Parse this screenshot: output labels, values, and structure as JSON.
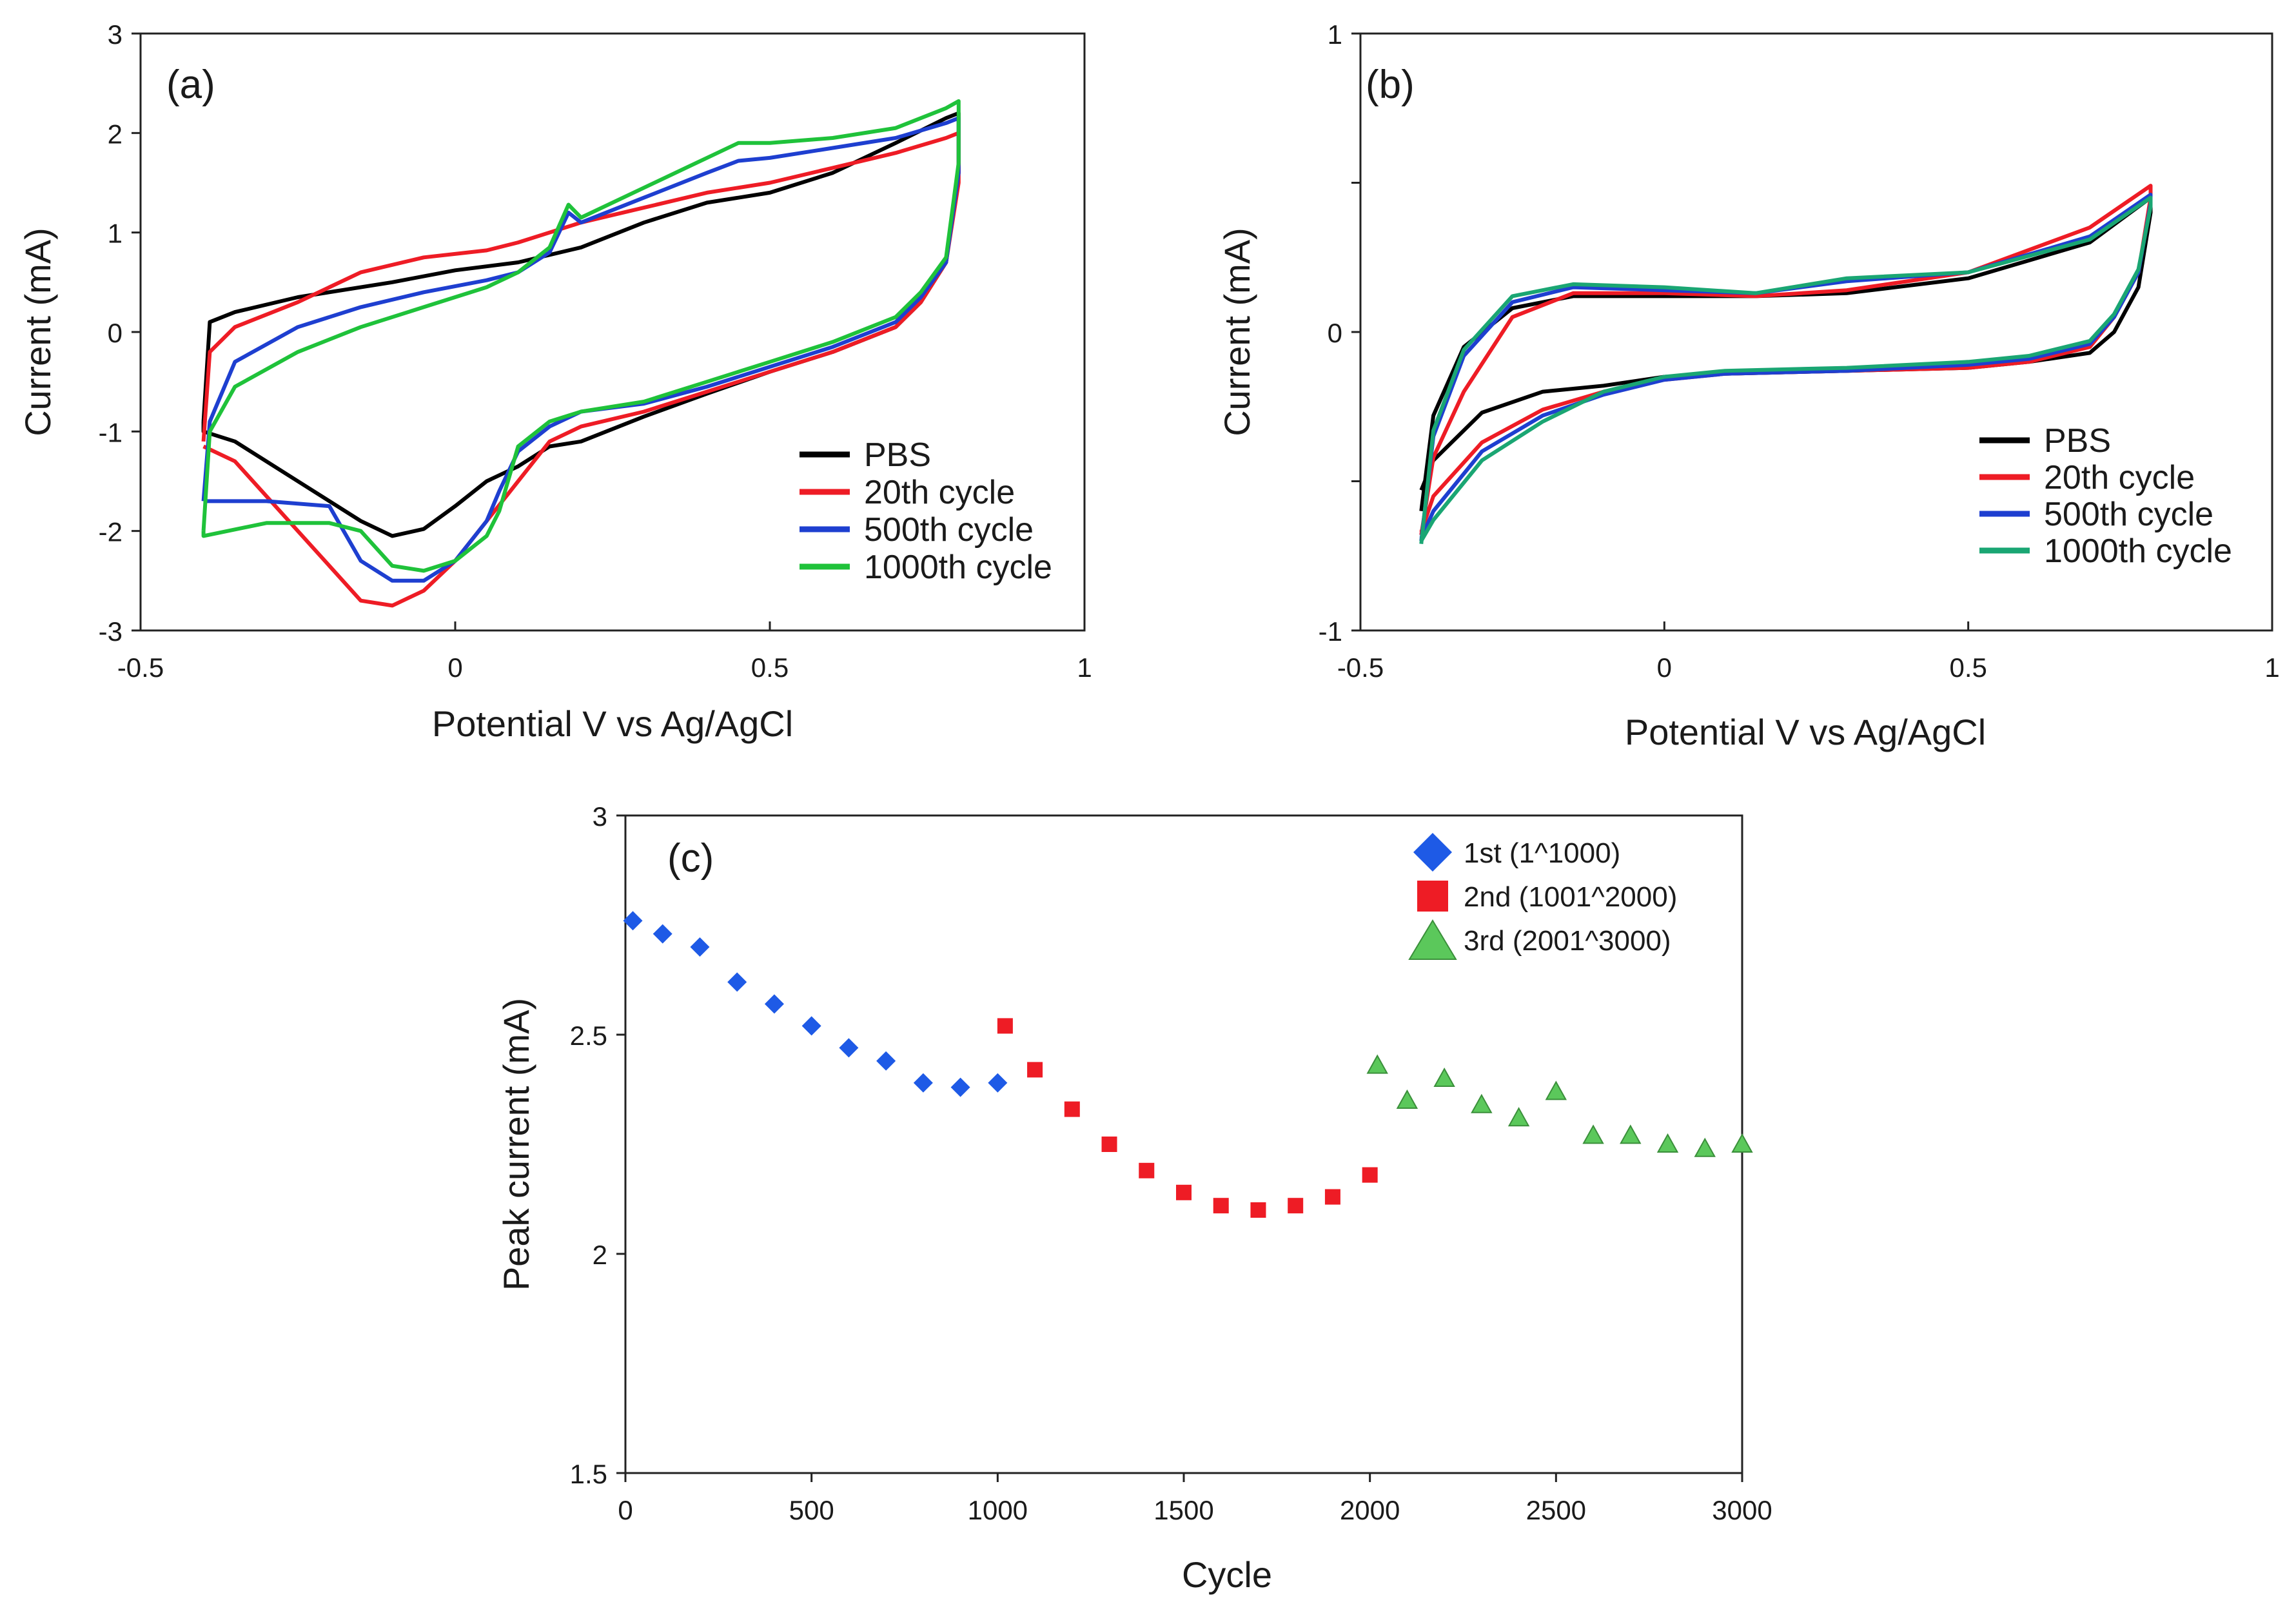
{
  "chart_data": [
    {
      "type": "line",
      "panel_label": "(a)",
      "xlabel": "Potential V vs Ag/AgCl",
      "ylabel": "Current (mA)",
      "xlim": [
        -0.5,
        1
      ],
      "ylim": [
        -3,
        3
      ],
      "xticks": [
        -0.5,
        0,
        0.5,
        1
      ],
      "xtick_labels": [
        "-0.5",
        "0",
        "0.5",
        "1"
      ],
      "yticks": [
        -3,
        -2,
        -1,
        0,
        1,
        2,
        3
      ],
      "ytick_labels": [
        "-3",
        "-2",
        "-1",
        "0",
        "1",
        "2",
        "3"
      ],
      "legend_position": "bottom-right",
      "series": [
        {
          "name": "PBS",
          "color": "#000000",
          "x": [
            -0.4,
            -0.39,
            -0.35,
            -0.25,
            -0.1,
            0.0,
            0.1,
            0.2,
            0.3,
            0.4,
            0.5,
            0.6,
            0.7,
            0.78,
            0.8,
            0.8,
            0.78,
            0.74,
            0.7,
            0.6,
            0.5,
            0.4,
            0.3,
            0.2,
            0.15,
            0.1,
            0.05,
            0.0,
            -0.05,
            -0.1,
            -0.15,
            -0.25,
            -0.35,
            -0.4,
            -0.4,
            -0.4
          ],
          "y": [
            -0.9,
            0.1,
            0.2,
            0.35,
            0.5,
            0.62,
            0.7,
            0.85,
            1.1,
            1.3,
            1.4,
            1.6,
            1.9,
            2.15,
            2.2,
            1.6,
            0.7,
            0.3,
            0.05,
            -0.2,
            -0.4,
            -0.62,
            -0.85,
            -1.1,
            -1.15,
            -1.35,
            -1.5,
            -1.75,
            -1.98,
            -2.05,
            -1.9,
            -1.5,
            -1.1,
            -1.0,
            -0.95,
            -0.9
          ]
        },
        {
          "name": "20th cycle",
          "color": "#ee1c25",
          "x": [
            -0.4,
            -0.39,
            -0.35,
            -0.25,
            -0.15,
            -0.05,
            0.05,
            0.1,
            0.2,
            0.3,
            0.4,
            0.5,
            0.6,
            0.7,
            0.78,
            0.8,
            0.8,
            0.78,
            0.74,
            0.7,
            0.6,
            0.5,
            0.4,
            0.3,
            0.2,
            0.15,
            0.1,
            0.05,
            0.0,
            -0.05,
            -0.1,
            -0.15,
            -0.25,
            -0.35,
            -0.4
          ],
          "y": [
            -1.1,
            -0.2,
            0.05,
            0.3,
            0.6,
            0.75,
            0.82,
            0.9,
            1.1,
            1.25,
            1.4,
            1.5,
            1.65,
            1.8,
            1.95,
            2.0,
            1.5,
            0.7,
            0.3,
            0.05,
            -0.2,
            -0.4,
            -0.6,
            -0.8,
            -0.95,
            -1.1,
            -1.5,
            -1.9,
            -2.3,
            -2.6,
            -2.75,
            -2.7,
            -2.0,
            -1.3,
            -1.15
          ]
        },
        {
          "name": "500th cycle",
          "color": "#1e3fd0",
          "x": [
            -0.4,
            -0.39,
            -0.35,
            -0.25,
            -0.15,
            -0.05,
            0.05,
            0.1,
            0.15,
            0.18,
            0.2,
            0.3,
            0.4,
            0.45,
            0.5,
            0.6,
            0.7,
            0.78,
            0.8,
            0.8,
            0.78,
            0.74,
            0.7,
            0.6,
            0.5,
            0.4,
            0.3,
            0.2,
            0.15,
            0.1,
            0.07,
            0.05,
            0.0,
            -0.05,
            -0.1,
            -0.15,
            -0.2,
            -0.3,
            -0.4,
            -0.4
          ],
          "y": [
            -1.7,
            -0.9,
            -0.3,
            0.05,
            0.25,
            0.4,
            0.52,
            0.6,
            0.8,
            1.2,
            1.1,
            1.35,
            1.6,
            1.72,
            1.75,
            1.85,
            1.95,
            2.1,
            2.15,
            1.6,
            0.7,
            0.35,
            0.1,
            -0.15,
            -0.35,
            -0.55,
            -0.72,
            -0.8,
            -0.95,
            -1.2,
            -1.6,
            -1.9,
            -2.3,
            -2.5,
            -2.5,
            -2.3,
            -1.75,
            -1.7,
            -1.7,
            -1.7
          ]
        },
        {
          "name": "1000th cycle",
          "color": "#1fc23a",
          "x": [
            -0.4,
            -0.39,
            -0.35,
            -0.25,
            -0.15,
            -0.05,
            0.05,
            0.1,
            0.15,
            0.18,
            0.2,
            0.3,
            0.4,
            0.45,
            0.5,
            0.6,
            0.7,
            0.78,
            0.8,
            0.8,
            0.78,
            0.74,
            0.7,
            0.6,
            0.5,
            0.4,
            0.3,
            0.2,
            0.15,
            0.1,
            0.07,
            0.05,
            0.0,
            -0.05,
            -0.1,
            -0.15,
            -0.2,
            -0.3,
            -0.4,
            -0.4
          ],
          "y": [
            -2.0,
            -1.0,
            -0.55,
            -0.2,
            0.05,
            0.25,
            0.45,
            0.6,
            0.85,
            1.28,
            1.15,
            1.45,
            1.75,
            1.9,
            1.9,
            1.95,
            2.05,
            2.25,
            2.32,
            1.7,
            0.75,
            0.4,
            0.15,
            -0.1,
            -0.3,
            -0.5,
            -0.7,
            -0.8,
            -0.9,
            -1.15,
            -1.8,
            -2.05,
            -2.3,
            -2.4,
            -2.35,
            -2.0,
            -1.92,
            -1.92,
            -2.05,
            -2.0
          ]
        }
      ]
    },
    {
      "type": "line",
      "panel_label": "(b)",
      "xlabel": "Potential V vs Ag/AgCl",
      "ylabel": "Current (mA)",
      "xlim": [
        -0.5,
        1
      ],
      "ylim": [
        -1,
        1
      ],
      "xticks": [
        -0.5,
        0,
        0.5,
        1
      ],
      "xtick_labels": [
        "-0.5",
        "0",
        "0.5",
        "1"
      ],
      "yticks": [
        -1,
        -0.5,
        0,
        0.5,
        1
      ],
      "ytick_labels": [
        "-1",
        "",
        "0",
        "",
        "1"
      ],
      "legend_position": "bottom-right",
      "series": [
        {
          "name": "PBS",
          "color": "#000000",
          "x": [
            -0.4,
            -0.38,
            -0.33,
            -0.25,
            -0.15,
            0.0,
            0.15,
            0.3,
            0.5,
            0.7,
            0.8,
            0.8,
            0.78,
            0.74,
            0.7,
            0.6,
            0.5,
            0.3,
            0.1,
            0.0,
            -0.1,
            -0.2,
            -0.3,
            -0.38,
            -0.4
          ],
          "y": [
            -0.6,
            -0.28,
            -0.05,
            0.08,
            0.12,
            0.12,
            0.12,
            0.13,
            0.18,
            0.3,
            0.45,
            0.4,
            0.15,
            0.0,
            -0.07,
            -0.1,
            -0.12,
            -0.13,
            -0.14,
            -0.15,
            -0.18,
            -0.2,
            -0.27,
            -0.43,
            -0.53
          ]
        },
        {
          "name": "20th cycle",
          "color": "#ee1c25",
          "x": [
            -0.4,
            -0.38,
            -0.33,
            -0.25,
            -0.15,
            0.0,
            0.15,
            0.3,
            0.5,
            0.7,
            0.8,
            0.8,
            0.78,
            0.74,
            0.7,
            0.6,
            0.5,
            0.3,
            0.1,
            0.0,
            -0.1,
            -0.2,
            -0.3,
            -0.38,
            -0.4
          ],
          "y": [
            -0.68,
            -0.42,
            -0.2,
            0.05,
            0.13,
            0.13,
            0.12,
            0.14,
            0.2,
            0.35,
            0.49,
            0.45,
            0.2,
            0.05,
            -0.05,
            -0.1,
            -0.12,
            -0.13,
            -0.14,
            -0.16,
            -0.2,
            -0.26,
            -0.37,
            -0.55,
            -0.67
          ]
        },
        {
          "name": "500th cycle",
          "color": "#1e3fd0",
          "x": [
            -0.4,
            -0.38,
            -0.33,
            -0.25,
            -0.15,
            0.0,
            0.15,
            0.3,
            0.5,
            0.7,
            0.8,
            0.8,
            0.78,
            0.74,
            0.7,
            0.6,
            0.5,
            0.3,
            0.1,
            0.0,
            -0.1,
            -0.2,
            -0.3,
            -0.38,
            -0.4
          ],
          "y": [
            -0.7,
            -0.35,
            -0.08,
            0.1,
            0.15,
            0.14,
            0.13,
            0.17,
            0.2,
            0.32,
            0.46,
            0.43,
            0.2,
            0.05,
            -0.04,
            -0.09,
            -0.11,
            -0.13,
            -0.14,
            -0.16,
            -0.21,
            -0.28,
            -0.4,
            -0.6,
            -0.69
          ]
        },
        {
          "name": "1000th cycle",
          "color": "#1aa673",
          "x": [
            -0.4,
            -0.38,
            -0.33,
            -0.25,
            -0.15,
            0.0,
            0.15,
            0.3,
            0.5,
            0.7,
            0.8,
            0.8,
            0.78,
            0.74,
            0.7,
            0.6,
            0.5,
            0.3,
            0.1,
            0.0,
            -0.1,
            -0.2,
            -0.3,
            -0.38,
            -0.4
          ],
          "y": [
            -0.71,
            -0.33,
            -0.06,
            0.12,
            0.16,
            0.15,
            0.13,
            0.18,
            0.2,
            0.31,
            0.45,
            0.42,
            0.21,
            0.06,
            -0.03,
            -0.08,
            -0.1,
            -0.12,
            -0.13,
            -0.15,
            -0.2,
            -0.3,
            -0.43,
            -0.63,
            -0.7
          ]
        }
      ]
    },
    {
      "type": "scatter",
      "panel_label": "(c)",
      "xlabel": "Cycle",
      "ylabel": "Peak current (mA)",
      "xlim": [
        0,
        3000
      ],
      "ylim": [
        1.5,
        3
      ],
      "xticks": [
        0,
        500,
        1000,
        1500,
        2000,
        2500,
        3000
      ],
      "xtick_labels": [
        "0",
        "500",
        "1000",
        "1500",
        "2000",
        "2500",
        "3000"
      ],
      "yticks": [
        1.5,
        2,
        2.5,
        3
      ],
      "ytick_labels": [
        "1.5",
        "2",
        "2.5",
        "3"
      ],
      "legend_position": "top-right",
      "series": [
        {
          "name": "1st (1^1000)",
          "marker": "diamond",
          "color": "#1e5ae6",
          "x": [
            20,
            100,
            200,
            300,
            400,
            500,
            600,
            700,
            800,
            900,
            1000
          ],
          "y": [
            2.76,
            2.73,
            2.7,
            2.62,
            2.57,
            2.52,
            2.47,
            2.44,
            2.39,
            2.38,
            2.39
          ]
        },
        {
          "name": "2nd (1001^2000)",
          "marker": "square",
          "color": "#ee1c25",
          "x": [
            1020,
            1100,
            1200,
            1300,
            1400,
            1500,
            1600,
            1700,
            1800,
            1900,
            2000
          ],
          "y": [
            2.52,
            2.42,
            2.33,
            2.25,
            2.19,
            2.14,
            2.11,
            2.1,
            2.11,
            2.13,
            2.18
          ]
        },
        {
          "name": "3rd (2001^3000)",
          "marker": "triangle",
          "color": "#5bc85b",
          "x": [
            2020,
            2100,
            2200,
            2300,
            2400,
            2500,
            2600,
            2700,
            2800,
            2900,
            3000
          ],
          "y": [
            2.43,
            2.35,
            2.4,
            2.34,
            2.31,
            2.37,
            2.27,
            2.27,
            2.25,
            2.24,
            2.25
          ]
        }
      ]
    }
  ]
}
